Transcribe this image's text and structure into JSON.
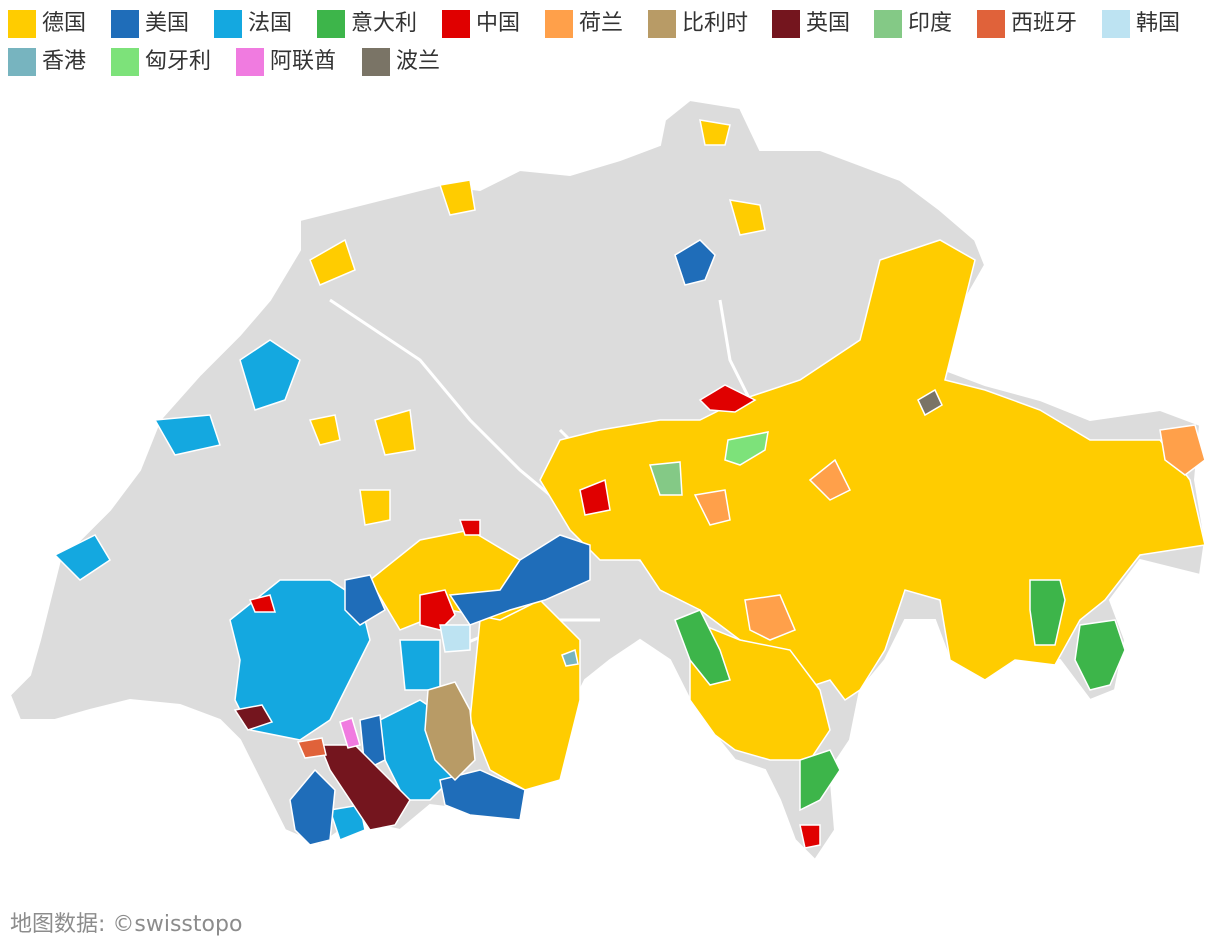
{
  "legend": [
    {
      "name": "德国",
      "color": "#FFCC00"
    },
    {
      "name": "美国",
      "color": "#1F6DB9"
    },
    {
      "name": "法国",
      "color": "#14A8E0"
    },
    {
      "name": "意大利",
      "color": "#3DB54A"
    },
    {
      "name": "中国",
      "color": "#E00000"
    },
    {
      "name": "荷兰",
      "color": "#FFA04A"
    },
    {
      "name": "比利时",
      "color": "#B89B66"
    },
    {
      "name": "英国",
      "color": "#74151E"
    },
    {
      "name": "印度",
      "color": "#84C986"
    },
    {
      "name": "西班牙",
      "color": "#E0623A"
    },
    {
      "name": "韩国",
      "color": "#BDE3F2"
    },
    {
      "name": "香港",
      "color": "#77B4BF"
    },
    {
      "name": "匈牙利",
      "color": "#7DE27A"
    },
    {
      "name": "阿联酋",
      "color": "#F07BE0"
    },
    {
      "name": "波兰",
      "color": "#7A7466"
    }
  ],
  "source_text": "地图数据: ©swisstopo",
  "base_color": "#DCDCDC",
  "map_icon": "switzerland-municipality-map"
}
